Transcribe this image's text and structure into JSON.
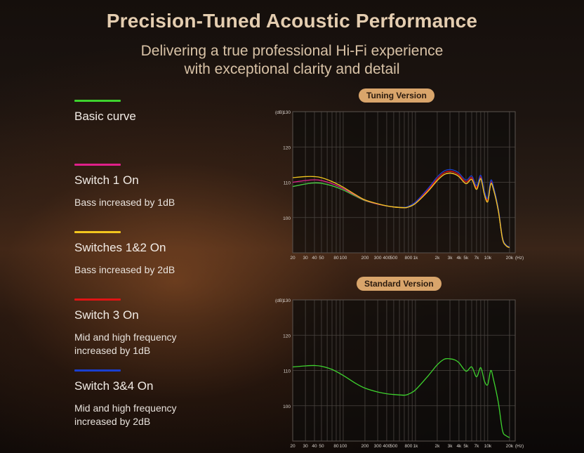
{
  "header": {
    "title": "Precision-Tuned Acoustic Performance",
    "subtitle_line1": "Delivering a true professional Hi-Fi experience",
    "subtitle_line2": "with exceptional clarity and detail"
  },
  "legend": [
    {
      "name": "Basic curve",
      "desc1": "",
      "desc2": "",
      "color": "#3ed22e"
    },
    {
      "name": "Switch 1 On",
      "desc1": "Bass increased by 1dB",
      "desc2": "",
      "color": "#e0208a"
    },
    {
      "name": "Switches 1&2 On",
      "desc1": "Bass increased by 2dB",
      "desc2": "",
      "color": "#f2c61e"
    },
    {
      "name": "Switch 3 On",
      "desc1": "Mid and high frequency",
      "desc2": "increased by 1dB",
      "color": "#e01414"
    },
    {
      "name": "Switch 3&4 On",
      "desc1": "Mid and high frequency",
      "desc2": "increased by 2dB",
      "color": "#1a3fd0"
    }
  ],
  "chart_data": [
    {
      "type": "line",
      "title": "Tuning Version",
      "ylabel": "(dB)",
      "xlabel": "(Hz)",
      "x_scale": "log",
      "xlim": [
        20,
        24000
      ],
      "ylim": [
        90,
        130
      ],
      "yticks": [
        100,
        110,
        120,
        130
      ],
      "xtick_labels": [
        {
          "v": 20,
          "t": "20"
        },
        {
          "v": 30,
          "t": "30"
        },
        {
          "v": 40,
          "t": "40"
        },
        {
          "v": 50,
          "t": "50"
        },
        {
          "v": 80,
          "t": "80"
        },
        {
          "v": 100,
          "t": "100"
        },
        {
          "v": 200,
          "t": "200"
        },
        {
          "v": 300,
          "t": "300"
        },
        {
          "v": 400,
          "t": "400"
        },
        {
          "v": 500,
          "t": "500"
        },
        {
          "v": 800,
          "t": "800"
        },
        {
          "v": 1000,
          "t": "1k"
        },
        {
          "v": 2000,
          "t": "2k"
        },
        {
          "v": 3000,
          "t": "3k"
        },
        {
          "v": 4000,
          "t": "4k"
        },
        {
          "v": 5000,
          "t": "5k"
        },
        {
          "v": 7000,
          "t": "7k"
        },
        {
          "v": 10000,
          "t": "10k"
        },
        {
          "v": 20000,
          "t": "20k"
        }
      ],
      "grid": true,
      "series": [
        {
          "name": "Basic curve",
          "color": "#3ed22e",
          "x": [
            20,
            30,
            40,
            50,
            70,
            100,
            150,
            200,
            300,
            400,
            500,
            700,
            800,
            1000,
            1500,
            2000,
            2500,
            3000,
            3500,
            4000,
            5000,
            6000,
            7000,
            8000,
            9000,
            10000,
            11000,
            12000,
            14000,
            16000,
            18000,
            20000
          ],
          "y": [
            108.8,
            109.5,
            109.8,
            109.7,
            109.0,
            107.8,
            106.0,
            104.8,
            103.8,
            103.3,
            103.0,
            102.8,
            103.0,
            104.0,
            107.5,
            110.5,
            112.2,
            112.6,
            112.3,
            111.6,
            109.6,
            110.8,
            108.0,
            111.0,
            106.5,
            104.5,
            109.5,
            108.0,
            102.0,
            94.0,
            92.0,
            91.5
          ]
        },
        {
          "name": "Switch 1 On",
          "color": "#e0208a",
          "x": [
            20,
            30,
            40,
            50,
            70,
            100,
            150,
            200,
            300,
            400,
            500,
            700,
            800,
            1000,
            1500,
            2000,
            2500,
            3000,
            3500,
            4000,
            5000,
            6000,
            7000,
            8000,
            9000,
            10000,
            11000,
            12000,
            14000,
            16000,
            18000,
            20000
          ],
          "y": [
            110.0,
            110.5,
            110.7,
            110.5,
            109.6,
            108.2,
            106.2,
            104.9,
            103.8,
            103.3,
            103.0,
            102.8,
            103.0,
            104.0,
            107.5,
            110.5,
            112.2,
            112.6,
            112.3,
            111.6,
            109.6,
            110.8,
            108.0,
            111.0,
            106.5,
            104.5,
            109.5,
            108.0,
            102.0,
            94.0,
            92.0,
            91.5
          ]
        },
        {
          "name": "Switches 1&2 On",
          "color": "#f2c61e",
          "x": [
            20,
            30,
            40,
            50,
            70,
            100,
            150,
            200,
            300,
            400,
            500,
            700,
            800,
            1000,
            1500,
            2000,
            2500,
            3000,
            3500,
            4000,
            5000,
            6000,
            7000,
            8000,
            9000,
            10000,
            11000,
            12000,
            14000,
            16000,
            18000,
            20000
          ],
          "y": [
            111.3,
            111.6,
            111.6,
            111.3,
            110.2,
            108.6,
            106.4,
            105.0,
            103.9,
            103.3,
            103.0,
            102.8,
            103.0,
            104.0,
            107.5,
            110.5,
            112.2,
            112.6,
            112.3,
            111.6,
            109.6,
            110.8,
            108.0,
            111.0,
            106.5,
            104.5,
            109.5,
            108.0,
            102.0,
            94.0,
            92.0,
            91.5
          ]
        },
        {
          "name": "Switch 3 On",
          "color": "#e01414",
          "x": [
            20,
            30,
            40,
            50,
            70,
            100,
            150,
            200,
            300,
            400,
            500,
            700,
            800,
            1000,
            1500,
            2000,
            2500,
            3000,
            3500,
            4000,
            5000,
            6000,
            7000,
            8000,
            9000,
            10000,
            11000,
            12000,
            14000,
            16000,
            18000,
            20000
          ],
          "y": [
            108.8,
            109.5,
            109.8,
            109.7,
            109.0,
            107.8,
            106.0,
            104.8,
            103.8,
            103.3,
            103.0,
            102.8,
            103.1,
            104.2,
            107.9,
            111.0,
            112.7,
            113.1,
            112.8,
            112.1,
            110.1,
            111.3,
            108.5,
            111.5,
            107.0,
            105.0,
            110.0,
            108.4,
            102.3,
            94.2,
            92.1,
            91.6
          ]
        },
        {
          "name": "Switch 3&4 On",
          "color": "#1a3fd0",
          "x": [
            20,
            30,
            40,
            50,
            70,
            100,
            150,
            200,
            300,
            400,
            500,
            700,
            800,
            1000,
            1500,
            2000,
            2500,
            3000,
            3500,
            4000,
            5000,
            6000,
            7000,
            8000,
            9000,
            10000,
            11000,
            12000,
            14000,
            16000,
            18000,
            20000
          ],
          "y": [
            108.8,
            109.5,
            109.8,
            109.7,
            109.0,
            107.8,
            106.0,
            104.8,
            103.8,
            103.3,
            103.0,
            102.9,
            103.2,
            104.4,
            108.3,
            111.5,
            113.2,
            113.6,
            113.3,
            112.6,
            110.6,
            111.8,
            109.0,
            112.0,
            107.5,
            105.5,
            110.5,
            108.8,
            102.6,
            94.4,
            92.2,
            91.7
          ]
        }
      ]
    },
    {
      "type": "line",
      "title": "Standard Version",
      "ylabel": "(dB)",
      "xlabel": "(Hz)",
      "x_scale": "log",
      "xlim": [
        20,
        24000
      ],
      "ylim": [
        90,
        130
      ],
      "yticks": [
        100,
        110,
        120,
        130
      ],
      "xtick_labels": [
        {
          "v": 20,
          "t": "20"
        },
        {
          "v": 30,
          "t": "30"
        },
        {
          "v": 40,
          "t": "40"
        },
        {
          "v": 50,
          "t": "50"
        },
        {
          "v": 80,
          "t": "80"
        },
        {
          "v": 100,
          "t": "100"
        },
        {
          "v": 200,
          "t": "200"
        },
        {
          "v": 300,
          "t": "300"
        },
        {
          "v": 400,
          "t": "400"
        },
        {
          "v": 500,
          "t": "500"
        },
        {
          "v": 800,
          "t": "800"
        },
        {
          "v": 1000,
          "t": "1k"
        },
        {
          "v": 2000,
          "t": "2k"
        },
        {
          "v": 3000,
          "t": "3k"
        },
        {
          "v": 4000,
          "t": "4k"
        },
        {
          "v": 5000,
          "t": "5k"
        },
        {
          "v": 7000,
          "t": "7k"
        },
        {
          "v": 10000,
          "t": "10k"
        },
        {
          "v": 20000,
          "t": "20k"
        }
      ],
      "grid": true,
      "series": [
        {
          "name": "Basic curve",
          "color": "#3ed22e",
          "x": [
            20,
            30,
            40,
            50,
            70,
            100,
            150,
            200,
            300,
            400,
            500,
            700,
            800,
            1000,
            1500,
            2000,
            2500,
            3000,
            3500,
            4000,
            5000,
            6000,
            7000,
            8000,
            9000,
            10000,
            11000,
            12000,
            14000,
            16000,
            18000,
            20000
          ],
          "y": [
            111.0,
            111.3,
            111.4,
            111.2,
            110.3,
            108.6,
            106.3,
            105.0,
            103.9,
            103.4,
            103.2,
            103.0,
            103.3,
            104.5,
            108.5,
            111.6,
            113.2,
            113.3,
            113.0,
            112.2,
            109.8,
            111.0,
            108.2,
            110.8,
            107.0,
            106.0,
            110.0,
            107.5,
            101.0,
            93.0,
            91.5,
            91.0
          ]
        }
      ]
    }
  ]
}
